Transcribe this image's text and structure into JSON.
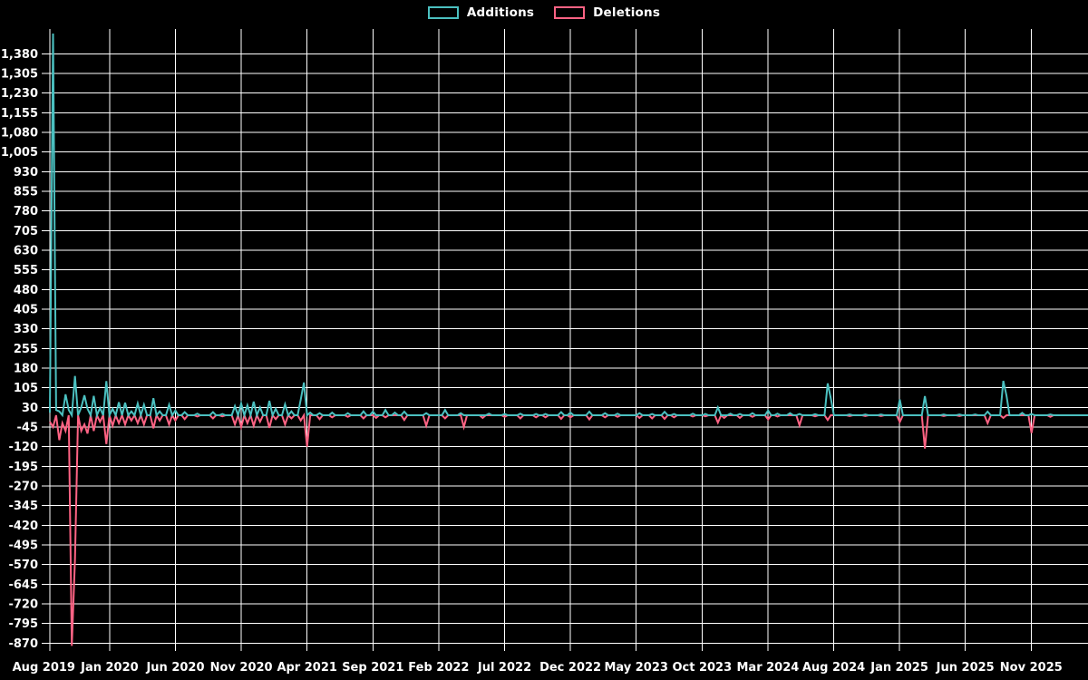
{
  "page": {
    "background": "#000000"
  },
  "legend": {
    "items": [
      {
        "label": "Additions",
        "color": "#4bc0c0"
      },
      {
        "label": "Deletions",
        "color": "#ff6384"
      }
    ]
  },
  "chart_data": {
    "type": "line",
    "title": "",
    "legend_position": "top-center",
    "grid": true,
    "background_color": "#000000",
    "grid_color": "#ffffff",
    "text_color": "#ffffff",
    "x_tick_labels": [
      "Aug 2019",
      "Jan 2020",
      "Jun 2020",
      "Nov 2020",
      "Apr 2021",
      "Sep 2021",
      "Feb 2022",
      "Jul 2022",
      "Dec 2022",
      "May 2023",
      "Oct 2023",
      "Mar 2024",
      "Aug 2024",
      "Jan 2025",
      "Jun 2025",
      "Nov 2025"
    ],
    "y_axis": {
      "max": 1380,
      "min": -870,
      "step": 75,
      "tick_labels": [
        "1,380",
        "1,305",
        "1,230",
        "1,155",
        "1,080",
        "1,005",
        "930",
        "855",
        "780",
        "705",
        "630",
        "555",
        "480",
        "405",
        "330",
        "255",
        "180",
        "105",
        "30",
        "-45",
        "-120",
        "-195",
        "-270",
        "-345",
        "-420",
        "-495",
        "-570",
        "-645",
        "-720",
        "-795",
        "-870"
      ]
    },
    "x_unit": "week index (0 = first week of Aug 2019, weekly points through late 2025)",
    "total_weeks": 332,
    "series": [
      {
        "name": "Additions",
        "color": "#4bc0c0",
        "default_value": 0,
        "points_sparse": [
          [
            0,
            10
          ],
          [
            1,
            1457
          ],
          [
            2,
            20
          ],
          [
            3,
            15
          ],
          [
            5,
            80
          ],
          [
            6,
            20
          ],
          [
            8,
            150
          ],
          [
            10,
            30
          ],
          [
            11,
            76
          ],
          [
            12,
            25
          ],
          [
            14,
            74
          ],
          [
            16,
            28
          ],
          [
            18,
            130
          ],
          [
            20,
            25
          ],
          [
            22,
            50
          ],
          [
            24,
            48
          ],
          [
            26,
            15
          ],
          [
            28,
            45
          ],
          [
            30,
            40
          ],
          [
            33,
            65
          ],
          [
            35,
            15
          ],
          [
            38,
            40
          ],
          [
            40,
            18
          ],
          [
            43,
            12
          ],
          [
            47,
            6
          ],
          [
            52,
            12
          ],
          [
            55,
            5
          ],
          [
            59,
            35
          ],
          [
            61,
            45
          ],
          [
            63,
            38
          ],
          [
            65,
            52
          ],
          [
            67,
            30
          ],
          [
            70,
            55
          ],
          [
            72,
            25
          ],
          [
            75,
            42
          ],
          [
            77,
            15
          ],
          [
            80,
            60
          ],
          [
            81,
            125
          ],
          [
            83,
            10
          ],
          [
            86,
            8
          ],
          [
            90,
            10
          ],
          [
            95,
            8
          ],
          [
            100,
            15
          ],
          [
            103,
            14
          ],
          [
            107,
            20
          ],
          [
            110,
            10
          ],
          [
            113,
            14
          ],
          [
            120,
            8
          ],
          [
            126,
            20
          ],
          [
            131,
            8
          ],
          [
            140,
            6
          ],
          [
            145,
            5
          ],
          [
            150,
            6
          ],
          [
            155,
            5
          ],
          [
            158,
            5
          ],
          [
            163,
            12
          ],
          [
            166,
            10
          ],
          [
            172,
            14
          ],
          [
            177,
            8
          ],
          [
            181,
            6
          ],
          [
            188,
            8
          ],
          [
            192,
            5
          ],
          [
            196,
            13
          ],
          [
            199,
            5
          ],
          [
            205,
            6
          ],
          [
            209,
            5
          ],
          [
            213,
            30
          ],
          [
            217,
            6
          ],
          [
            220,
            5
          ],
          [
            224,
            8
          ],
          [
            229,
            18
          ],
          [
            232,
            6
          ],
          [
            236,
            8
          ],
          [
            239,
            5
          ],
          [
            244,
            4
          ],
          [
            248,
            122
          ],
          [
            249,
            65
          ],
          [
            255,
            3
          ],
          [
            260,
            3
          ],
          [
            265,
            3
          ],
          [
            271,
            60
          ],
          [
            279,
            73
          ],
          [
            285,
            3
          ],
          [
            290,
            3
          ],
          [
            295,
            3
          ],
          [
            299,
            14
          ],
          [
            304,
            131
          ],
          [
            305,
            75
          ],
          [
            310,
            9
          ],
          [
            313,
            5
          ],
          [
            319,
            3
          ]
        ]
      },
      {
        "name": "Deletions",
        "color": "#ff6384",
        "default_value": 0,
        "points_sparse": [
          [
            0,
            -25
          ],
          [
            1,
            -45
          ],
          [
            3,
            -95
          ],
          [
            4,
            -30
          ],
          [
            5,
            -60
          ],
          [
            7,
            -880
          ],
          [
            8,
            -550
          ],
          [
            10,
            -60
          ],
          [
            11,
            -35
          ],
          [
            12,
            -70
          ],
          [
            14,
            -60
          ],
          [
            16,
            -25
          ],
          [
            18,
            -110
          ],
          [
            20,
            -40
          ],
          [
            22,
            -30
          ],
          [
            24,
            -35
          ],
          [
            26,
            -20
          ],
          [
            28,
            -30
          ],
          [
            30,
            -35
          ],
          [
            33,
            -50
          ],
          [
            35,
            -20
          ],
          [
            38,
            -35
          ],
          [
            40,
            -20
          ],
          [
            43,
            -15
          ],
          [
            47,
            -5
          ],
          [
            52,
            -12
          ],
          [
            55,
            -4
          ],
          [
            59,
            -35
          ],
          [
            61,
            -45
          ],
          [
            63,
            -30
          ],
          [
            65,
            -40
          ],
          [
            67,
            -25
          ],
          [
            70,
            -48
          ],
          [
            72,
            -15
          ],
          [
            75,
            -35
          ],
          [
            77,
            -12
          ],
          [
            80,
            -20
          ],
          [
            82,
            -120
          ],
          [
            86,
            -15
          ],
          [
            90,
            -8
          ],
          [
            95,
            -6
          ],
          [
            100,
            -12
          ],
          [
            104,
            -10
          ],
          [
            107,
            -8
          ],
          [
            113,
            -18
          ],
          [
            120,
            -40
          ],
          [
            126,
            -12
          ],
          [
            132,
            -45
          ],
          [
            138,
            -10
          ],
          [
            145,
            -6
          ],
          [
            150,
            -12
          ],
          [
            155,
            -8
          ],
          [
            158,
            -8
          ],
          [
            163,
            -14
          ],
          [
            166,
            -8
          ],
          [
            172,
            -16
          ],
          [
            177,
            -8
          ],
          [
            181,
            -6
          ],
          [
            188,
            -10
          ],
          [
            192,
            -12
          ],
          [
            196,
            -14
          ],
          [
            199,
            -8
          ],
          [
            205,
            -5
          ],
          [
            209,
            -4
          ],
          [
            213,
            -28
          ],
          [
            215,
            -10
          ],
          [
            220,
            -10
          ],
          [
            224,
            -6
          ],
          [
            229,
            -16
          ],
          [
            232,
            -5
          ],
          [
            239,
            -38
          ],
          [
            244,
            -4
          ],
          [
            248,
            -18
          ],
          [
            255,
            -3
          ],
          [
            260,
            -3
          ],
          [
            265,
            -3
          ],
          [
            271,
            -26
          ],
          [
            279,
            -127
          ],
          [
            285,
            -3
          ],
          [
            290,
            -3
          ],
          [
            299,
            -30
          ],
          [
            304,
            -10
          ],
          [
            313,
            -68
          ],
          [
            319,
            -6
          ]
        ]
      }
    ]
  }
}
